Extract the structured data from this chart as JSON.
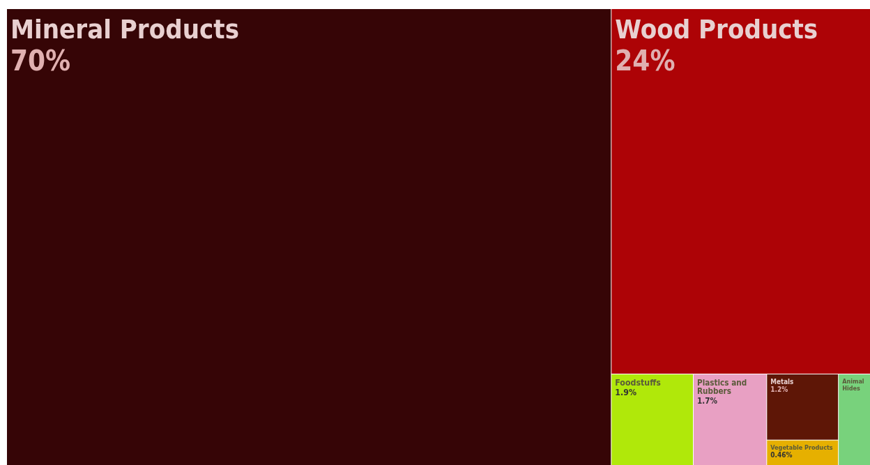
{
  "chart_data": {
    "type": "other",
    "categories": [
      "Mineral Products",
      "Wood Products",
      "Foodstuffs",
      "Plastics and Rubbers",
      "Metals",
      "Vegetable Products",
      "Animal Hides"
    ],
    "values": [
      70,
      24,
      1.9,
      1.7,
      1.2,
      0.46,
      null
    ],
    "value_labels": [
      "70%",
      "24%",
      "1.9%",
      "1.7%",
      "1.2%",
      "0.46%",
      null
    ],
    "colors": [
      "#360506",
      "#ad0306",
      "#b0e80a",
      "#e8a0c3",
      "#5e1606",
      "#e6b000",
      "#78d27c"
    ]
  }
}
